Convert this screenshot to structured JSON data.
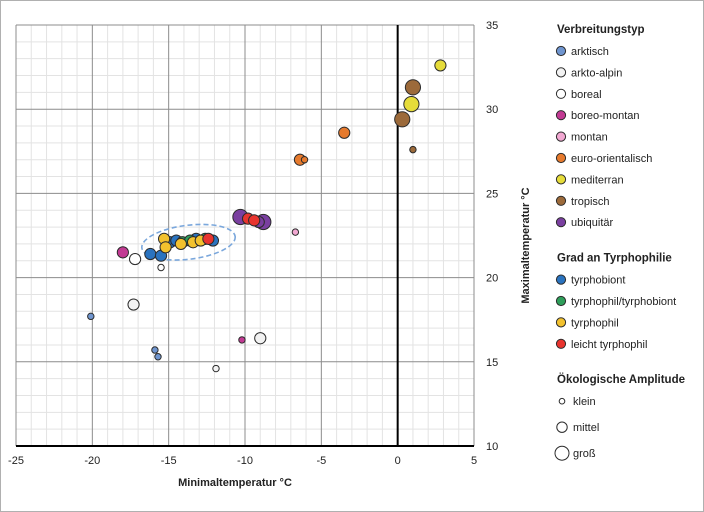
{
  "chart_data": {
    "type": "scatter",
    "xlabel": "Minimaltemperatur °C",
    "ylabel": "Maximaltemperatur °C",
    "xlim": [
      -25,
      5
    ],
    "ylim": [
      10,
      35
    ],
    "x_ticks": [
      "-25",
      "-20",
      "-15",
      "-10",
      "-5",
      "0",
      "5"
    ],
    "y_ticks": [
      "10",
      "15",
      "20",
      "25",
      "30",
      "35"
    ],
    "grid": true,
    "zero_line": "x=0",
    "colors": {
      "arktisch": "#6f95cf",
      "arkto-alpin": "#f2f2f2",
      "boreal": "#ffffff",
      "boreo-montan": "#c23a93",
      "montan": "#f2a8d2",
      "euro-orientalisch": "#e67a2d",
      "mediterran": "#e6dc3a",
      "tropisch": "#9c6a3a",
      "ubiquitär": "#7a3fa0",
      "tyrphobiont": "#2a73bf",
      "tyrphophil/tyrphobiont": "#2e9e5a",
      "tyrphophil": "#f2c12e",
      "leicht tyrphophil": "#e8342e"
    },
    "legend": {
      "position": "right",
      "sections": [
        {
          "title": "Verbreitungstyp",
          "items": [
            {
              "label": "arktisch",
              "color": "#6f95cf",
              "icon": "circle-icon"
            },
            {
              "label": "arkto-alpin",
              "color": "#f2f2f2",
              "icon": "circle-icon"
            },
            {
              "label": "boreal",
              "color": "#ffffff",
              "icon": "circle-icon"
            },
            {
              "label": "boreo-montan",
              "color": "#c23a93",
              "icon": "circle-icon"
            },
            {
              "label": "montan",
              "color": "#f2a8d2",
              "icon": "circle-icon"
            },
            {
              "label": "euro-orientalisch",
              "color": "#e67a2d",
              "icon": "circle-icon"
            },
            {
              "label": "mediterran",
              "color": "#e6dc3a",
              "icon": "circle-icon"
            },
            {
              "label": "tropisch",
              "color": "#9c6a3a",
              "icon": "circle-icon"
            },
            {
              "label": "ubiquitär",
              "color": "#7a3fa0",
              "icon": "circle-icon"
            }
          ]
        },
        {
          "title": "Grad an Tyrphophilie",
          "items": [
            {
              "label": "tyrphobiont",
              "color": "#2a73bf",
              "icon": "circle-icon"
            },
            {
              "label": "tyrphophil/tyrphobiont",
              "color": "#2e9e5a",
              "icon": "circle-icon"
            },
            {
              "label": "tyrphophil",
              "color": "#f2c12e",
              "icon": "circle-icon"
            },
            {
              "label": "leicht tyrphophil",
              "color": "#e8342e",
              "icon": "circle-icon"
            }
          ]
        },
        {
          "title": "Ökologische Amplitude",
          "items": [
            {
              "label": "klein",
              "size": "small",
              "icon": "circle-outline-icon"
            },
            {
              "label": "mittel",
              "size": "medium",
              "icon": "circle-outline-icon"
            },
            {
              "label": "groß",
              "size": "large",
              "icon": "circle-outline-icon"
            }
          ]
        }
      ]
    },
    "highlight_ellipse": {
      "center": [
        -13.7,
        22.1
      ],
      "color": "#7aa7dc",
      "style": "dashed"
    },
    "points": [
      {
        "x": -20.1,
        "y": 17.7,
        "category": "arktisch",
        "amplitude": "small"
      },
      {
        "x": -15.9,
        "y": 15.7,
        "category": "arktisch",
        "amplitude": "small"
      },
      {
        "x": -15.7,
        "y": 15.3,
        "category": "arktisch",
        "amplitude": "small"
      },
      {
        "x": -17.3,
        "y": 18.4,
        "category": "arkto-alpin",
        "amplitude": "medium"
      },
      {
        "x": -9.0,
        "y": 16.4,
        "category": "arkto-alpin",
        "amplitude": "medium"
      },
      {
        "x": -11.9,
        "y": 14.6,
        "category": "arkto-alpin",
        "amplitude": "small"
      },
      {
        "x": -17.2,
        "y": 21.1,
        "category": "boreal",
        "amplitude": "medium"
      },
      {
        "x": -15.5,
        "y": 20.6,
        "category": "boreal",
        "amplitude": "small"
      },
      {
        "x": -18.0,
        "y": 21.5,
        "category": "boreo-montan",
        "amplitude": "medium"
      },
      {
        "x": -10.2,
        "y": 16.3,
        "category": "boreo-montan",
        "amplitude": "small"
      },
      {
        "x": -6.7,
        "y": 22.7,
        "category": "montan",
        "amplitude": "small"
      },
      {
        "x": -3.5,
        "y": 28.6,
        "category": "euro-orientalisch",
        "amplitude": "medium"
      },
      {
        "x": -6.4,
        "y": 27.0,
        "category": "euro-orientalisch",
        "amplitude": "medium"
      },
      {
        "x": -6.1,
        "y": 27.0,
        "category": "euro-orientalisch",
        "amplitude": "small"
      },
      {
        "x": 2.8,
        "y": 32.6,
        "category": "mediterran",
        "amplitude": "medium"
      },
      {
        "x": 0.9,
        "y": 30.3,
        "category": "mediterran",
        "amplitude": "large"
      },
      {
        "x": 1.0,
        "y": 31.3,
        "category": "tropisch",
        "amplitude": "large"
      },
      {
        "x": 0.3,
        "y": 29.4,
        "category": "tropisch",
        "amplitude": "large"
      },
      {
        "x": 1.0,
        "y": 27.6,
        "category": "tropisch",
        "amplitude": "small"
      },
      {
        "x": -10.3,
        "y": 23.6,
        "category": "ubiquitär",
        "amplitude": "large"
      },
      {
        "x": -8.8,
        "y": 23.3,
        "category": "ubiquitär",
        "amplitude": "large"
      },
      {
        "x": -9.1,
        "y": 23.3,
        "category": "ubiquitär",
        "amplitude": "medium"
      },
      {
        "x": -9.8,
        "y": 23.5,
        "category": "leicht tyrphophil",
        "amplitude": "medium"
      },
      {
        "x": -9.4,
        "y": 23.4,
        "category": "leicht tyrphophil",
        "amplitude": "medium"
      },
      {
        "x": -16.2,
        "y": 21.4,
        "category": "tyrphobiont",
        "amplitude": "medium"
      },
      {
        "x": -15.5,
        "y": 21.3,
        "category": "tyrphobiont",
        "amplitude": "medium"
      },
      {
        "x": -14.9,
        "y": 22.1,
        "category": "tyrphobiont",
        "amplitude": "medium"
      },
      {
        "x": -14.5,
        "y": 22.2,
        "category": "tyrphobiont",
        "amplitude": "medium"
      },
      {
        "x": -13.2,
        "y": 22.3,
        "category": "tyrphobiont",
        "amplitude": "medium"
      },
      {
        "x": -12.1,
        "y": 22.2,
        "category": "tyrphobiont",
        "amplitude": "medium"
      },
      {
        "x": -14.1,
        "y": 22.1,
        "category": "tyrphophil/tyrphobiont",
        "amplitude": "medium"
      },
      {
        "x": -13.6,
        "y": 22.2,
        "category": "tyrphophil/tyrphobiont",
        "amplitude": "medium"
      },
      {
        "x": -12.6,
        "y": 22.3,
        "category": "tyrphophil/tyrphobiont",
        "amplitude": "medium"
      },
      {
        "x": -15.3,
        "y": 22.3,
        "category": "tyrphophil",
        "amplitude": "medium"
      },
      {
        "x": -15.2,
        "y": 21.8,
        "category": "tyrphophil",
        "amplitude": "medium"
      },
      {
        "x": -14.2,
        "y": 22.0,
        "category": "tyrphophil",
        "amplitude": "medium"
      },
      {
        "x": -13.4,
        "y": 22.1,
        "category": "tyrphophil",
        "amplitude": "medium"
      },
      {
        "x": -12.9,
        "y": 22.2,
        "category": "tyrphophil",
        "amplitude": "medium"
      },
      {
        "x": -12.4,
        "y": 22.3,
        "category": "leicht tyrphophil",
        "amplitude": "medium"
      }
    ]
  }
}
